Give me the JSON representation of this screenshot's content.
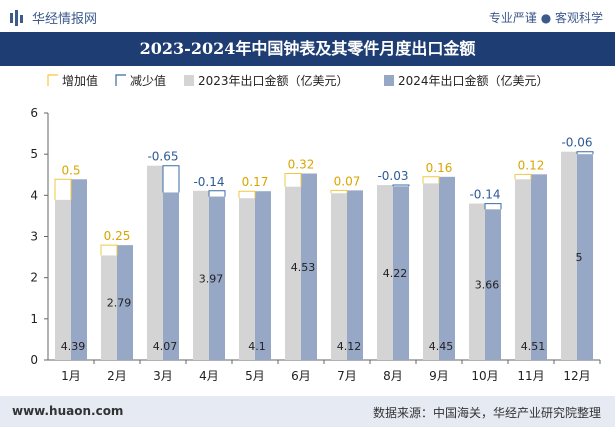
{
  "header": {
    "brand": "华经情报网",
    "tagline": "专业严谨 ● 客观科学"
  },
  "footer": {
    "url": "www.huaon.com",
    "source": "数据来源：中国海关，华经产业研究院整理"
  },
  "colors": {
    "bar2023": "#d4d4d4",
    "bar2024": "#97a7c6",
    "increase": "#f2c744",
    "decrease": "#3a6ba5",
    "title_band": "#1e3d73"
  },
  "chart_data": {
    "type": "bar",
    "title": "2023-2024年中国钟表及其零件月度出口金额",
    "legend_position": "top",
    "legend": [
      "增加值",
      "减少值",
      "2023年出口金额（亿美元）",
      "2024年出口金额（亿美元）"
    ],
    "categories": [
      "1月",
      "2月",
      "3月",
      "4月",
      "5月",
      "6月",
      "7月",
      "8月",
      "9月",
      "10月",
      "11月",
      "12月"
    ],
    "series": [
      {
        "name": "2023年出口金额（亿美元）",
        "values": [
          3.89,
          2.54,
          4.72,
          4.11,
          3.93,
          4.21,
          4.05,
          4.25,
          4.29,
          3.8,
          4.39,
          5.06
        ]
      },
      {
        "name": "2024年出口金额（亿美元）",
        "values": [
          4.39,
          2.79,
          4.07,
          3.97,
          4.1,
          4.53,
          4.12,
          4.22,
          4.45,
          3.66,
          4.51,
          5
        ]
      }
    ],
    "value_labels": [
      "4.39",
      "2.79",
      "4.07",
      "3.97",
      "4.1",
      "4.53",
      "4.12",
      "4.22",
      "4.45",
      "3.66",
      "4.51",
      "5"
    ],
    "change": [
      0.5,
      0.25,
      -0.65,
      -0.14,
      0.17,
      0.32,
      0.07,
      -0.03,
      0.16,
      -0.14,
      0.12,
      -0.06
    ],
    "change_labels": [
      "0.5",
      "0.25",
      "-0.65",
      "-0.14",
      "0.17",
      "0.32",
      "0.07",
      "-0.03",
      "0.16",
      "-0.14",
      "0.12",
      "-0.06"
    ],
    "ylim": [
      0,
      6
    ],
    "yticks": [
      0,
      1,
      2,
      3,
      4,
      5,
      6
    ],
    "grid": false
  }
}
